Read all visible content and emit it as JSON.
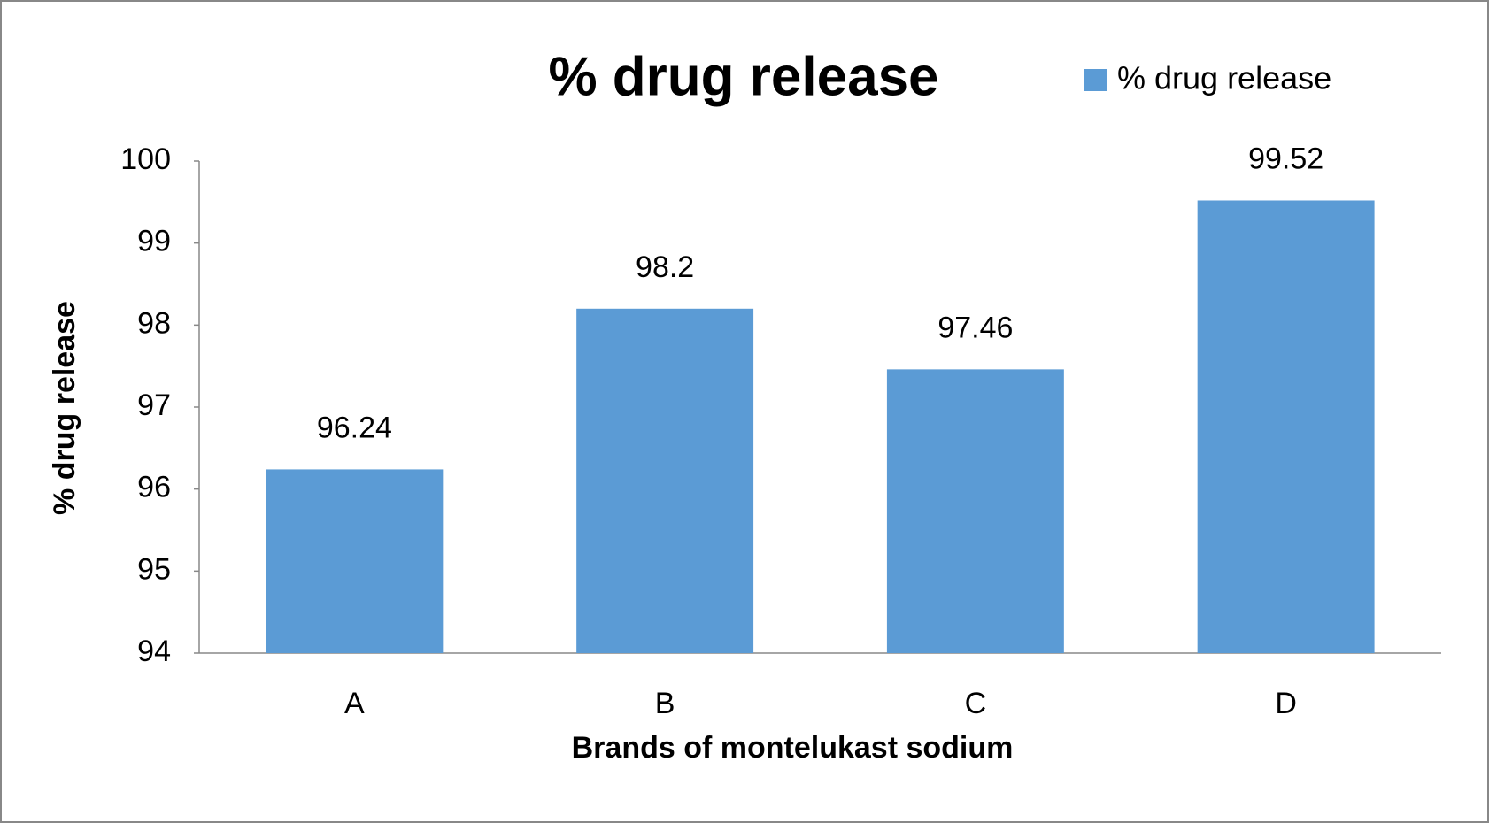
{
  "chart_data": {
    "type": "bar",
    "title": "% drug release",
    "x_label": "Brands of montelukast sodium",
    "y_label": "% drug release",
    "categories": [
      "A",
      "B",
      "C",
      "D"
    ],
    "series": [
      {
        "name": "% drug release",
        "color": "#5b9bd5",
        "values": [
          96.24,
          98.2,
          97.46,
          99.52
        ]
      }
    ],
    "ylim": [
      94,
      100
    ],
    "yticks": [
      94,
      95,
      96,
      97,
      98,
      99,
      100
    ],
    "legend": "top-right",
    "grid": false
  }
}
